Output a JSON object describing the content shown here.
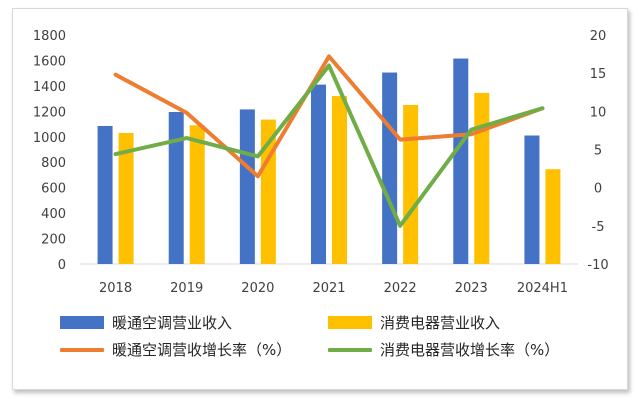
{
  "chart_data": {
    "type": "bar",
    "categories": [
      "2018",
      "2019",
      "2020",
      "2021",
      "2022",
      "2023",
      "2024H1"
    ],
    "series": [
      {
        "name": "暖通空调营业收入",
        "kind": "bar",
        "axis": "left",
        "color": "#4472C4",
        "values": [
          1085,
          1195,
          1215,
          1410,
          1505,
          1615,
          1010
        ]
      },
      {
        "name": "消费电器营业收入",
        "kind": "bar",
        "axis": "left",
        "color": "#FFC000",
        "values": [
          1030,
          1090,
          1135,
          1320,
          1250,
          1345,
          745
        ]
      },
      {
        "name": "暖通空调营收增长率（%）",
        "kind": "line",
        "axis": "right",
        "color": "#ED7D31",
        "values": [
          14.8,
          9.8,
          1.5,
          17.2,
          6.3,
          7.0,
          10.4
        ]
      },
      {
        "name": "消费电器营收增长率（%）",
        "kind": "line",
        "axis": "right",
        "color": "#70AD47",
        "values": [
          4.4,
          6.5,
          4.1,
          16.0,
          -5.0,
          7.6,
          10.4
        ]
      }
    ],
    "ylim": [
      0,
      1800
    ],
    "yticks": [
      "0",
      "200",
      "400",
      "600",
      "800",
      "1000",
      "1200",
      "1400",
      "1600",
      "1800"
    ],
    "y2lim": [
      -10,
      20
    ],
    "y2ticks": [
      "-10",
      "-5",
      "0",
      "5",
      "10",
      "15",
      "20"
    ],
    "grid": false,
    "legend_position": "bottom"
  }
}
